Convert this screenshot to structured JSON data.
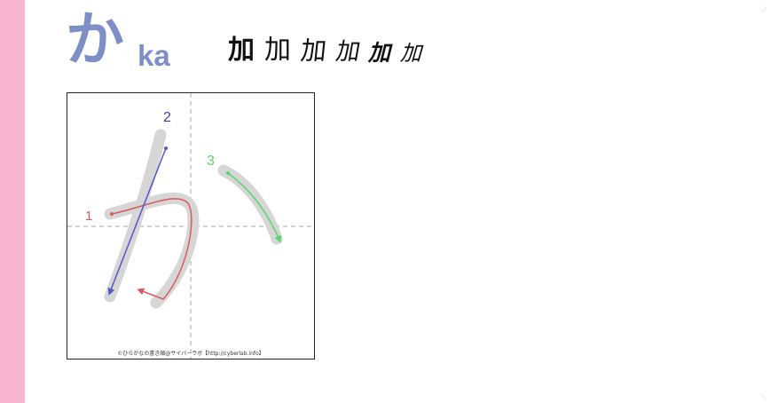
{
  "header": {
    "kana": "か",
    "romaji": "ka",
    "origin_characters": [
      "加",
      "加",
      "加",
      "加",
      "加",
      "加"
    ]
  },
  "stroke_diagram": {
    "stroke_numbers": [
      "1",
      "2",
      "3"
    ],
    "stroke_colors": [
      "#d9585f",
      "#5656c9",
      "#59d66b"
    ],
    "credit": "©ひらがなの書き順@サイバーラボ【http://cyberlab.info】"
  },
  "colors": {
    "accent": "#7d8fc6",
    "left_stripe": "#f9b4cf"
  }
}
